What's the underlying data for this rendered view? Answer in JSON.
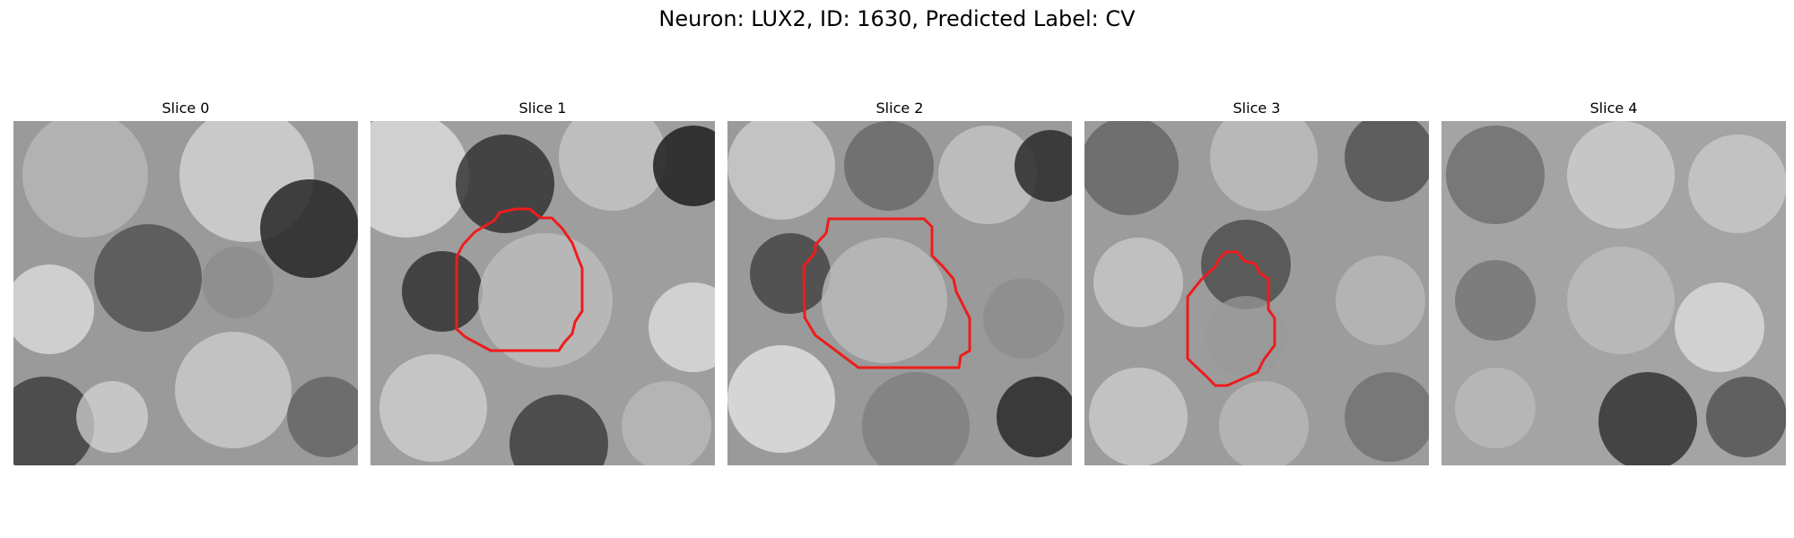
{
  "figure": {
    "title": "Neuron: LUX2, ID: 1630, Predicted Label: CV"
  },
  "panels": [
    {
      "title": "Slice 0",
      "has_contour": false
    },
    {
      "title": "Slice 1",
      "has_contour": true
    },
    {
      "title": "Slice 2",
      "has_contour": true
    },
    {
      "title": "Slice 3",
      "has_contour": true
    },
    {
      "title": "Slice 4",
      "has_contour": false
    }
  ],
  "colors": {
    "contour": "#ee1c1c"
  }
}
